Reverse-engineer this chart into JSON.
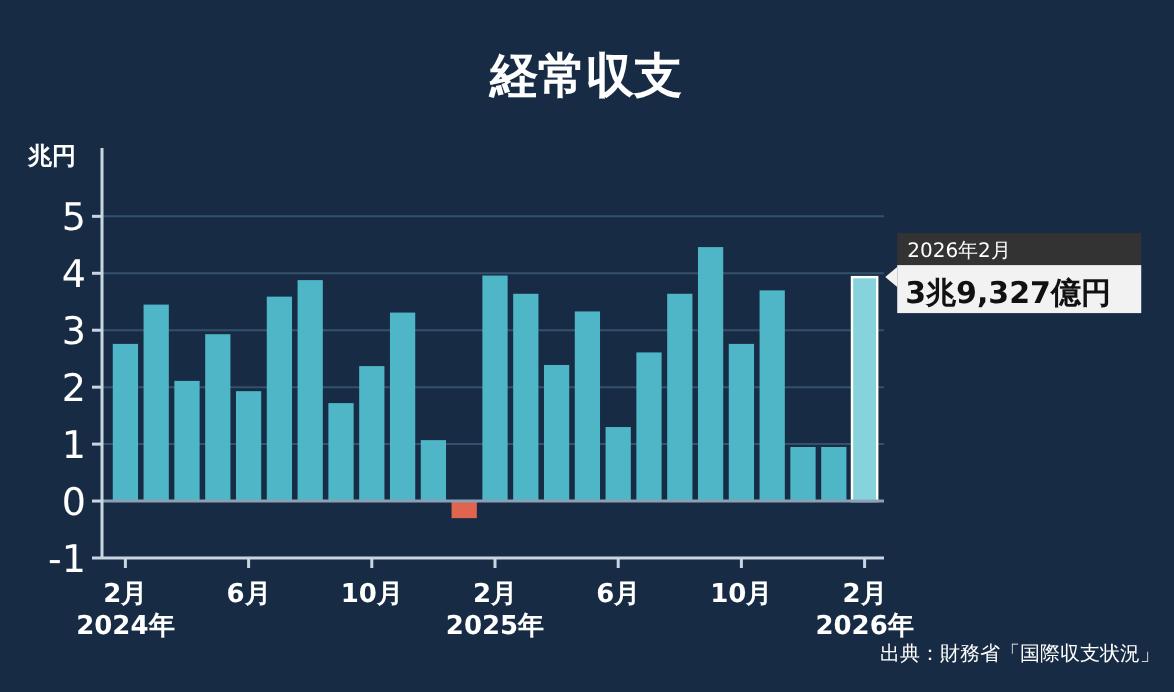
{
  "chart_data": {
    "type": "bar",
    "title": "経常収支",
    "ylabel": "兆円",
    "categories": [
      "2月\n2024年",
      null,
      null,
      null,
      "6月",
      null,
      null,
      null,
      "10月",
      null,
      null,
      null,
      "2月\n2025年",
      null,
      null,
      null,
      "6月",
      null,
      null,
      null,
      "10月",
      null,
      null,
      null,
      "2月\n2026年"
    ],
    "values": [
      2.76,
      3.45,
      2.11,
      2.93,
      1.93,
      3.59,
      3.88,
      1.72,
      2.37,
      3.31,
      1.07,
      -0.3,
      3.96,
      3.64,
      2.39,
      3.33,
      1.3,
      2.61,
      3.64,
      4.46,
      2.76,
      3.7,
      0.95,
      0.95,
      3.9327
    ],
    "colors": [
      "#4eb6c6",
      "#4eb6c6",
      "#4eb6c6",
      "#4eb6c6",
      "#4eb6c6",
      "#4eb6c6",
      "#4eb6c6",
      "#4eb6c6",
      "#4eb6c6",
      "#4eb6c6",
      "#4eb6c6",
      "#e0654f",
      "#4eb6c6",
      "#4eb6c6",
      "#4eb6c6",
      "#4eb6c6",
      "#4eb6c6",
      "#4eb6c6",
      "#4eb6c6",
      "#4eb6c6",
      "#4eb6c6",
      "#4eb6c6",
      "#4eb6c6",
      "#4eb6c6",
      "#86d3dd"
    ],
    "ylim": [
      -1,
      6.2
    ],
    "yticks": [
      -1,
      0,
      1,
      2,
      3,
      4,
      5
    ],
    "grid": "y",
    "ref_lines": [
      {
        "axis": "y",
        "value": 0,
        "color": "#8aa0b4"
      }
    ],
    "annotations": [
      {
        "text": "2026年2月\n3兆9,327億円",
        "x": "2月\n2026年",
        "y": 3.9327
      },
      "出典：財務省「国際収支状況」"
    ]
  }
}
